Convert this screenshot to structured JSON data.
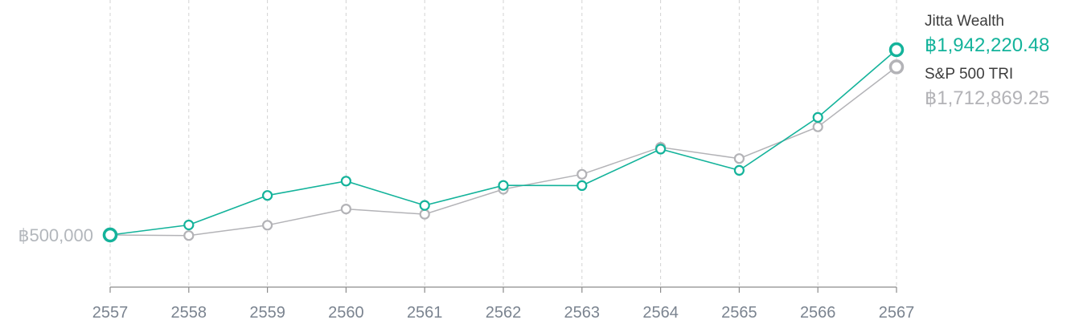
{
  "colors": {
    "jitta": "#14b39b",
    "sp500": "#b3b3b7",
    "grid": "#d3d3d3",
    "axis": "#8c8c8c"
  },
  "chart_data": {
    "type": "line",
    "categories": [
      "2557",
      "2558",
      "2559",
      "2560",
      "2561",
      "2562",
      "2563",
      "2564",
      "2565",
      "2566",
      "2567"
    ],
    "series": [
      {
        "name": "Jitta Wealth",
        "final_value_label": "฿1,942,220.48",
        "values": [
          500000,
          538000,
          668000,
          742000,
          621000,
          719000,
          718000,
          938000,
          803000,
          1183000,
          1942220.48
        ]
      },
      {
        "name": "S&P 500 TRI",
        "final_value_label": "฿1,712,869.25",
        "values": [
          500000,
          498000,
          537000,
          605000,
          582000,
          699000,
          780000,
          951000,
          875000,
          1104000,
          1712869.25
        ]
      }
    ],
    "start_label": "฿500,000",
    "y_scale": "log",
    "ylim": [
      374000,
      2120000
    ],
    "grid": "vertical-dashed",
    "legend_position": "right"
  }
}
